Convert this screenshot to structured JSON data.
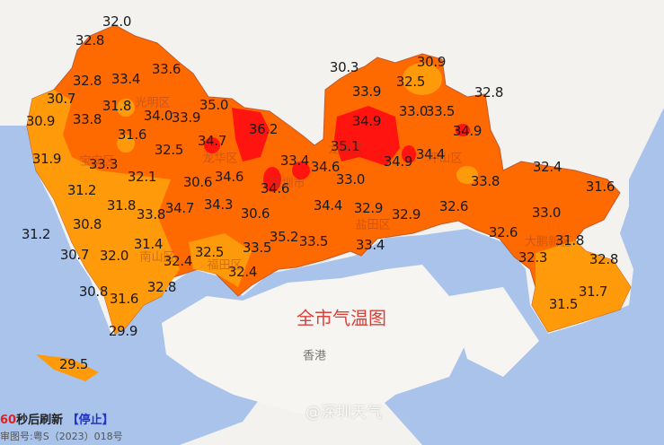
{
  "map": {
    "title": "全市气温图",
    "place_hongkong": "香港",
    "districts": [
      "光明区",
      "宝安区",
      "龙华区",
      "深圳市",
      "南山区",
      "福田区",
      "龙岗区",
      "坪山区",
      "盐田区",
      "大鹏新区"
    ],
    "colors": {
      "sea": "#a9c3ea",
      "land": "#f3f2ef",
      "temp_low": "#ff9a0a",
      "temp_mid": "#ff6a00",
      "temp_high": "#ff1410"
    },
    "temperatures": [
      "32.0",
      "32.8",
      "33.4",
      "33.6",
      "32.8",
      "30.7",
      "31.8",
      "33.8",
      "34.0",
      "33.9",
      "35.0",
      "36.2",
      "30.9",
      "31.6",
      "34.7",
      "32.5",
      "31.9",
      "33.3",
      "33.4",
      "34.6",
      "32.1",
      "30.6",
      "34.6",
      "34.6",
      "31.2",
      "31.8",
      "33.8",
      "34.7",
      "34.3",
      "30.6",
      "34.4",
      "32.9",
      "32.9",
      "32.6",
      "33.0",
      "35.1",
      "34.9",
      "33.9",
      "30.3",
      "30.9",
      "32.5",
      "33.0",
      "33.5",
      "32.8",
      "34.9",
      "34.4",
      "34.9",
      "33.8",
      "32.4",
      "31.6",
      "33.0",
      "32.6",
      "31.8",
      "32.3",
      "32.8",
      "31.7",
      "31.5",
      "31.2",
      "30.7",
      "32.0",
      "31.4",
      "32.5",
      "32.4",
      "33.5",
      "35.2",
      "33.5",
      "32.4",
      "33.4",
      "32.8",
      "30.8",
      "31.6",
      "29.9",
      "29.5",
      "30.8"
    ]
  },
  "footer": {
    "refresh_seconds": "60",
    "refresh_text": "秒后刷新",
    "stop_label": "【停止】",
    "approval": "审图号:粤S（2023）018号",
    "watermark": "@深圳天气"
  }
}
